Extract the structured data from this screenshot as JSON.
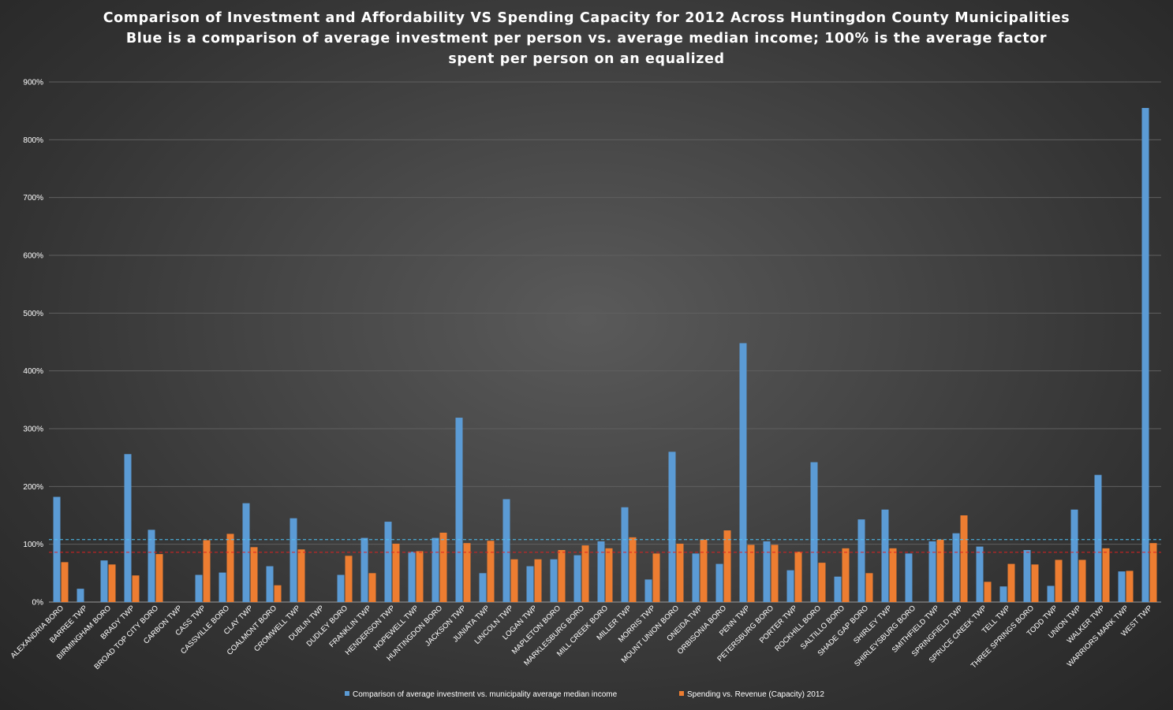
{
  "chart_data": {
    "type": "bar",
    "title": [
      "Comparison  of  Investment  and  Affordability  VS  Spending  Capacity  for  2012  Across  Huntingdon  County  Municipalities",
      "Blue   is  a  comparison  of  average  investment  per  person  vs.  average  median  income;  100%  is  the  average  factor",
      "spent  per  person  on  an  equalized"
    ],
    "xlabel": "",
    "ylabel": "",
    "ylim": [
      0,
      900
    ],
    "yticks": [
      "0%",
      "100%",
      "200%",
      "300%",
      "400%",
      "500%",
      "600%",
      "700%",
      "800%",
      "900%"
    ],
    "grid": true,
    "legend_position": "bottom",
    "categories": [
      "ALEXANDRIA BORO",
      "BARREE TWP",
      "BIRMINGHAM BORO",
      "BRADY TWP",
      "BROAD TOP CITY BORO",
      "CARBON TWP",
      "CASS TWP",
      "CASSVILLE BORO",
      "CLAY TWP",
      "COALMONT BORO",
      "CROMWELL TWP",
      "DUBLIN TWP",
      "DUDLEY BORO",
      "FRANKLIN TWP",
      "HENDERSON TWP",
      "HOPEWELL TWP",
      "HUNTINGDON BORO",
      "JACKSON TWP",
      "JUNIATA TWP",
      "LINCOLN TWP",
      "LOGAN TWP",
      "MAPLETON BORO",
      "MARKLESBURG  BORO",
      "MILL CREEK BORO",
      "MILLER TWP",
      "MORRIS TWP",
      "MOUNT UNION BORO",
      "ONEIDA TWP",
      "ORBISONIA BORO",
      "PENN TWP",
      "PETERSBURG  BORO",
      "PORTER TWP",
      "ROCKHILL  BORO",
      "SALTILLO BORO",
      "SHADE GAP BORO",
      "SHIRLEY TWP",
      "SHIRLEYSBURG BORO",
      "SMITHFIELD TWP",
      "SPRINGFIELD TWP",
      "SPRUCE CREEK TWP",
      "TELL TWP",
      "THREE SPRINGS BORO",
      "TODD TWP",
      "UNION TWP",
      "WALKER TWP",
      "WARRIORS MARK TWP",
      "WEST TWP"
    ],
    "series": [
      {
        "name": "Comparison of average investment vs. municipality average median income",
        "color": "#5b9bd5",
        "values": [
          182,
          23,
          72,
          256,
          125,
          0,
          47,
          51,
          171,
          62,
          145,
          0,
          47,
          111,
          139,
          87,
          111,
          319,
          50,
          178,
          62,
          74,
          81,
          105,
          164,
          39,
          260,
          84,
          66,
          448,
          105,
          55,
          242,
          44,
          143,
          160,
          84,
          105,
          119,
          96,
          27,
          90,
          28,
          160,
          220,
          53,
          855
        ]
      },
      {
        "name": "Spending vs. Revenue (Capacity) 2012",
        "color": "#ed7d31",
        "values": [
          69,
          0,
          65,
          46,
          83,
          0,
          107,
          118,
          95,
          29,
          91,
          0,
          80,
          50,
          101,
          88,
          120,
          102,
          106,
          74,
          74,
          90,
          98,
          93,
          112,
          84,
          101,
          108,
          124,
          99,
          99,
          87,
          68,
          93,
          50,
          93,
          0,
          108,
          150,
          35,
          66,
          65,
          73,
          73,
          93,
          54,
          102
        ]
      }
    ],
    "reference_lines": [
      {
        "value": 108,
        "color": "#4fc3f7",
        "style": "dashed"
      },
      {
        "value": 86,
        "color": "#e02020",
        "style": "dashed"
      }
    ]
  }
}
